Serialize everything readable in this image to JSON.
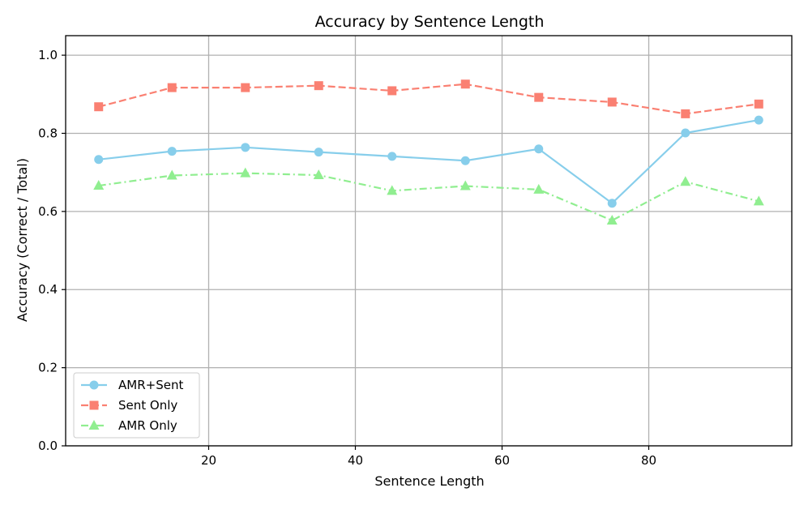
{
  "chart_data": {
    "type": "line",
    "title": "Accuracy by Sentence Length",
    "xlabel": "Sentence Length",
    "ylabel": "Accuracy (Correct / Total)",
    "x": [
      5,
      15,
      25,
      35,
      45,
      55,
      65,
      75,
      85,
      95
    ],
    "xlim": [
      0.5,
      99.5
    ],
    "ylim": [
      0.0,
      1.05
    ],
    "xticks": [
      20,
      40,
      60,
      80
    ],
    "yticks": [
      0.0,
      0.2,
      0.4,
      0.6,
      0.8,
      1.0
    ],
    "xtick_labels": [
      "20",
      "40",
      "60",
      "80"
    ],
    "ytick_labels": [
      "0.0",
      "0.2",
      "0.4",
      "0.6",
      "0.8",
      "1.0"
    ],
    "grid": true,
    "legend_position": "lower-left",
    "series": [
      {
        "name": "AMR+Sent",
        "color": "#87ceeb",
        "marker": "circle",
        "dash": "solid",
        "values": [
          0.733,
          0.754,
          0.764,
          0.752,
          0.741,
          0.73,
          0.76,
          0.621,
          0.801,
          0.834
        ]
      },
      {
        "name": "Sent Only",
        "color": "#fa8072",
        "marker": "square",
        "dash": "dashed",
        "values": [
          0.868,
          0.917,
          0.917,
          0.922,
          0.909,
          0.926,
          0.892,
          0.88,
          0.85,
          0.875
        ]
      },
      {
        "name": "AMR Only",
        "color": "#90ee90",
        "marker": "triangle",
        "dash": "dashdot",
        "values": [
          0.666,
          0.692,
          0.698,
          0.693,
          0.653,
          0.665,
          0.656,
          0.577,
          0.676,
          0.626
        ]
      }
    ]
  }
}
